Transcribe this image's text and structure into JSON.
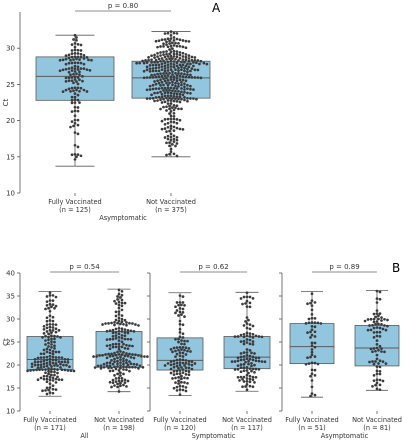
{
  "figure": {
    "panel_labels": [
      "A",
      "B"
    ]
  },
  "colors": {
    "box_fill": "#92c5de",
    "box_edge": "#5a5a5a",
    "dot": "#3a3a3a",
    "axis": "#555555"
  },
  "chart_data": [
    {
      "panel": "A",
      "type": "box",
      "overlay": "swarm",
      "ylabel": "Ct",
      "ylim": [
        10,
        35
      ],
      "yticks": [
        10,
        15,
        20,
        25,
        30
      ],
      "group_label": "Asymptomatic",
      "p_value_label": "p = 0.80",
      "grid": false,
      "categories": [
        {
          "name": "Fully Vaccinated",
          "n_label": "(n = 125)",
          "n": 125,
          "min": 13.7,
          "q1": 22.8,
          "median": 26.1,
          "q3": 28.8,
          "max": 31.8
        },
        {
          "name": "Not Vaccinated",
          "n_label": "(n = 375)",
          "n": 375,
          "min": 15.0,
          "q1": 23.1,
          "median": 25.9,
          "q3": 28.2,
          "max": 32.3
        }
      ]
    },
    {
      "panel": "B",
      "type": "box",
      "overlay": "swarm",
      "ylabel": "Ct",
      "ylim": [
        10,
        40
      ],
      "yticks": [
        10,
        15,
        20,
        25,
        30,
        35,
        40
      ],
      "grid": false,
      "subplots": [
        {
          "group_label": "All",
          "p_value_label": "p = 0.54",
          "categories": [
            {
              "name": "Fully Vaccinated",
              "n_label": "(n = 171)",
              "n": 171,
              "min": 13.2,
              "q1": 19.0,
              "median": 21.2,
              "q3": 26.2,
              "max": 36.0
            },
            {
              "name": "Not Vaccinated",
              "n_label": "(n = 198)",
              "n": 198,
              "min": 14.2,
              "q1": 19.5,
              "median": 22.2,
              "q3": 27.3,
              "max": 36.5
            }
          ]
        },
        {
          "group_label": "Symptomatic",
          "p_value_label": "p = 0.62",
          "categories": [
            {
              "name": "Fully Vaccinated",
              "n_label": "(n = 120)",
              "n": 120,
              "min": 13.4,
              "q1": 18.9,
              "median": 21.0,
              "q3": 25.9,
              "max": 35.7
            },
            {
              "name": "Not Vaccinated",
              "n_label": "(n = 117)",
              "n": 117,
              "min": 14.3,
              "q1": 19.2,
              "median": 21.7,
              "q3": 26.2,
              "max": 35.8
            }
          ]
        },
        {
          "group_label": "Asymptomatic",
          "p_value_label": "p = 0.89",
          "categories": [
            {
              "name": "Fully Vaccinated",
              "n_label": "(n = 51)",
              "n": 51,
              "min": 13.0,
              "q1": 20.3,
              "median": 24.0,
              "q3": 29.0,
              "max": 36.0
            },
            {
              "name": "Not Vaccinated",
              "n_label": "(n = 81)",
              "n": 81,
              "min": 14.5,
              "q1": 19.8,
              "median": 23.7,
              "q3": 28.6,
              "max": 36.2
            }
          ]
        }
      ]
    }
  ]
}
